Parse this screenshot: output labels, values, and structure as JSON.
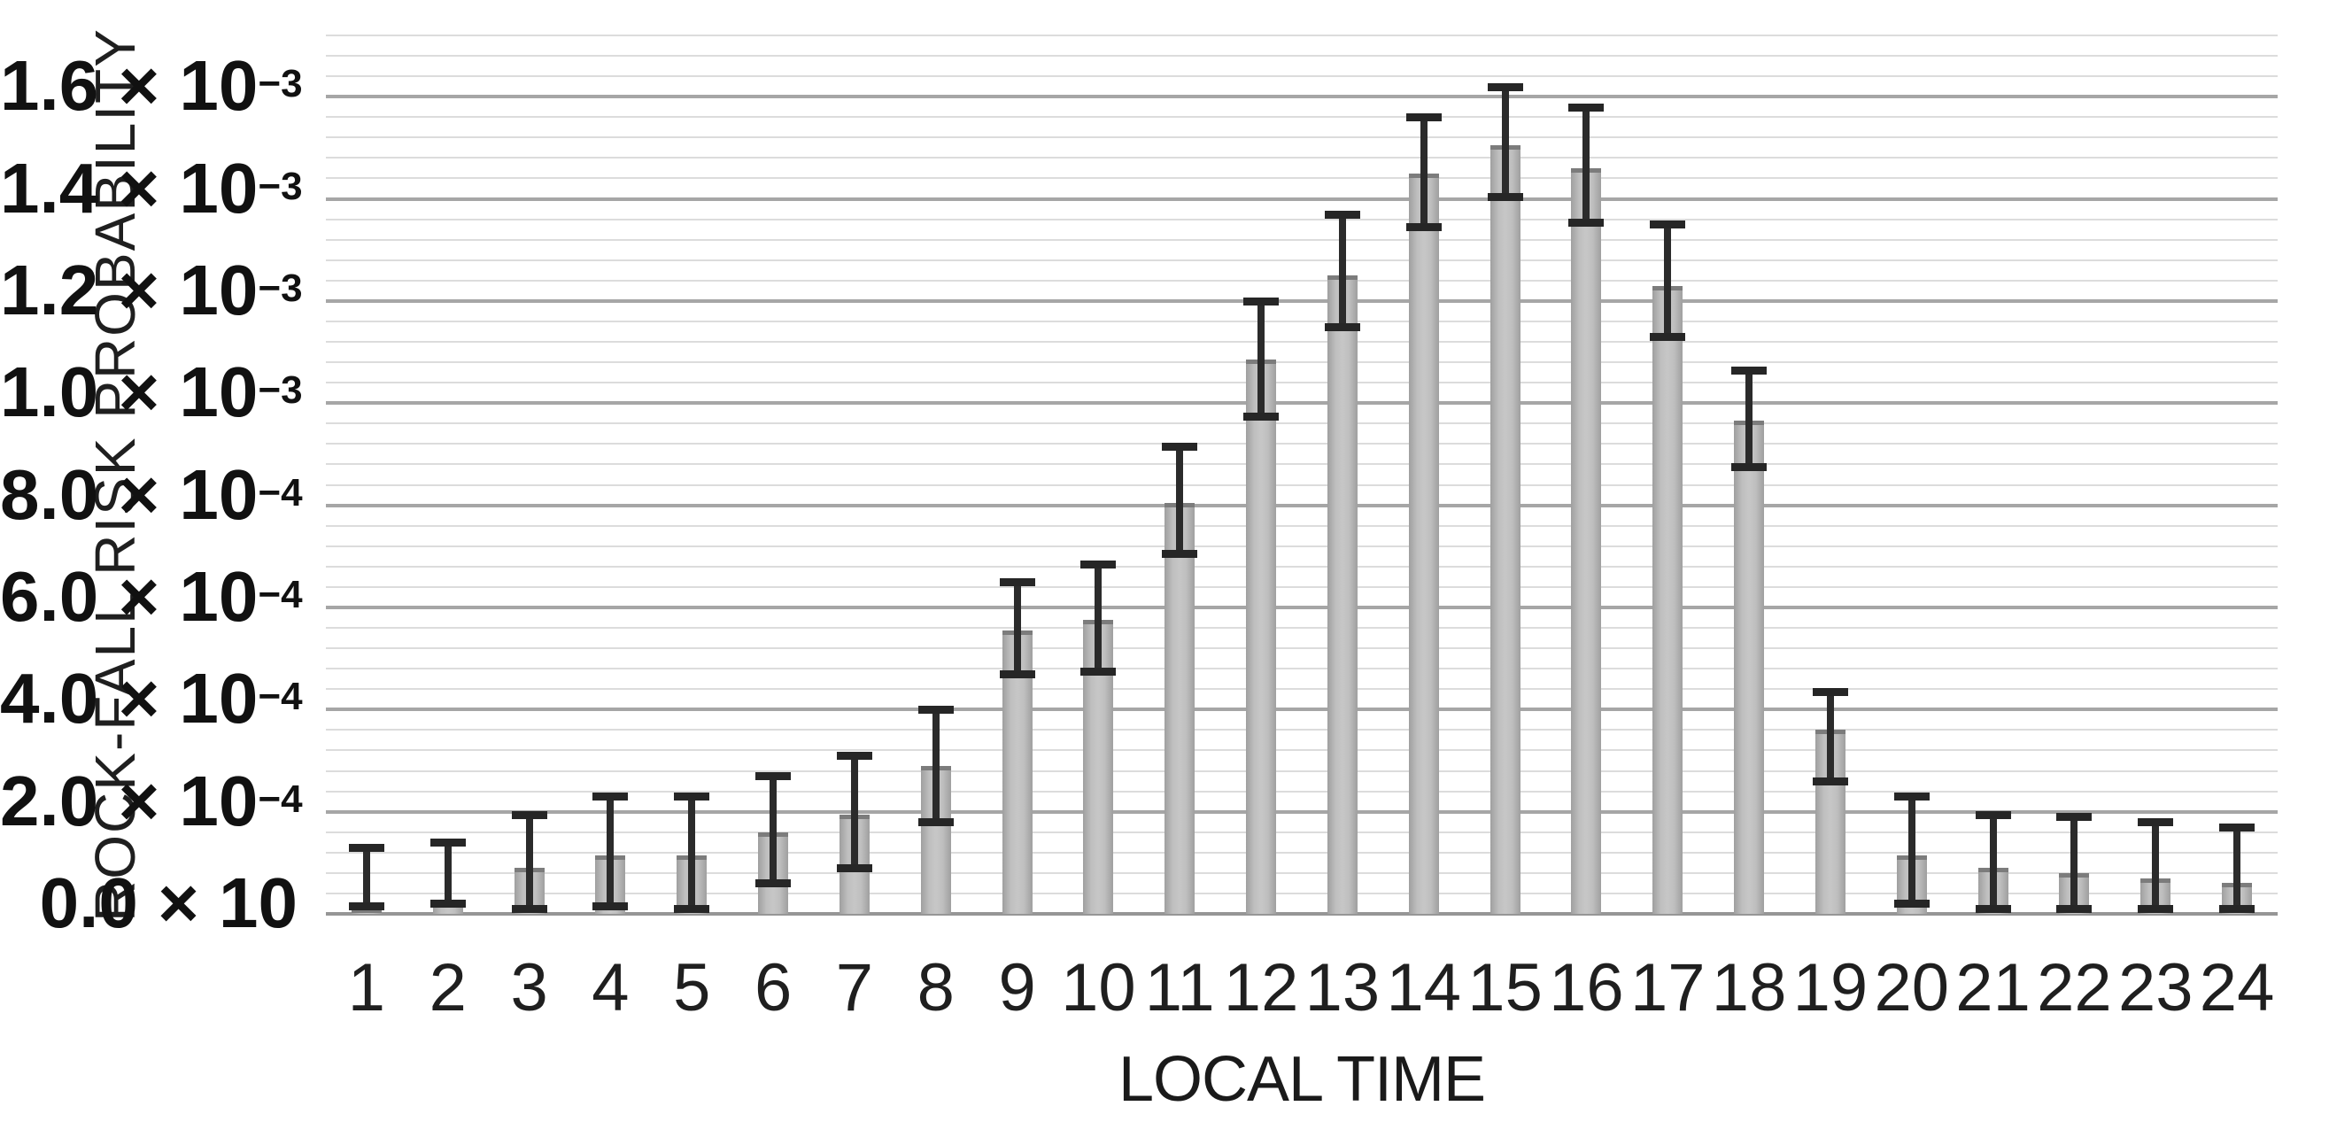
{
  "chart_data": {
    "type": "bar",
    "title": "",
    "xlabel": "LOCAL TIME",
    "ylabel": "ROCK-FALL RISK PROBABILITY",
    "categories": [
      "1",
      "2",
      "3",
      "4",
      "5",
      "6",
      "7",
      "8",
      "9",
      "10",
      "11",
      "12",
      "13",
      "14",
      "15",
      "16",
      "17",
      "18",
      "19",
      "20",
      "21",
      "22",
      "23",
      "24"
    ],
    "series": [
      {
        "name": "rock-fall risk probability",
        "values": [
          1e-05,
          2e-05,
          9e-05,
          0.000115,
          0.000115,
          0.00016,
          0.000195,
          0.00029,
          0.000555,
          0.000575,
          0.000805,
          0.001085,
          0.00125,
          0.00145,
          0.001505,
          0.00146,
          0.00123,
          0.000965,
          0.00036,
          0.000115,
          9e-05,
          8e-05,
          7e-05,
          6e-05
        ]
      }
    ],
    "error_low": [
      1.5e-05,
      2e-05,
      1e-05,
      1.5e-05,
      1e-05,
      6e-05,
      9e-05,
      0.00018,
      0.00047,
      0.000475,
      0.000705,
      0.000975,
      0.00115,
      0.001345,
      0.001405,
      0.001355,
      0.00113,
      0.000875,
      0.00026,
      2e-05,
      1e-05,
      1e-05,
      1e-05,
      1e-05
    ],
    "error_high": [
      0.00013,
      0.00014,
      0.000195,
      0.00023,
      0.00023,
      0.00027,
      0.00031,
      0.0004,
      0.00065,
      0.000685,
      0.000915,
      0.0012,
      0.00137,
      0.00156,
      0.00162,
      0.00158,
      0.00135,
      0.001065,
      0.000435,
      0.00023,
      0.000195,
      0.00019,
      0.00018,
      0.00017
    ],
    "ylim": [
      0,
      0.00172
    ],
    "y_major_step": 0.0002,
    "y_minor_step": 4e-05,
    "grid": "horizontal-major-and-minor",
    "legend": "none",
    "y_ticks": [
      {
        "value": 0.0016,
        "mantissa": "1.6",
        "times_base": " × 10",
        "exponent": "−3"
      },
      {
        "value": 0.0014,
        "mantissa": "1.4",
        "times_base": " × 10",
        "exponent": "−3"
      },
      {
        "value": 0.0012,
        "mantissa": "1.2",
        "times_base": " × 10",
        "exponent": "−3"
      },
      {
        "value": 0.001,
        "mantissa": "1.0",
        "times_base": " × 10",
        "exponent": "−3"
      },
      {
        "value": 0.0008,
        "mantissa": "8.0",
        "times_base": " × 10",
        "exponent": "−4"
      },
      {
        "value": 0.0006,
        "mantissa": "6.0",
        "times_base": " × 10",
        "exponent": "−4"
      },
      {
        "value": 0.0004,
        "mantissa": "4.0",
        "times_base": " × 10",
        "exponent": "−4"
      },
      {
        "value": 0.0002,
        "mantissa": "2.0",
        "times_base": " × 10",
        "exponent": "−4"
      },
      {
        "value": 0.0,
        "mantissa": "0.0",
        "times_base": " × 10",
        "exponent": ""
      }
    ],
    "colors": {
      "background": "#ffffff",
      "bar_fill": "#bfbfbf",
      "bar_edge": "#7c7c7c",
      "error_bar": "#262626",
      "grid_major": "#a6a6a6",
      "grid_minor": "#dcdcdc",
      "axis_line": "#969696",
      "text": "#1a1a1a"
    }
  }
}
